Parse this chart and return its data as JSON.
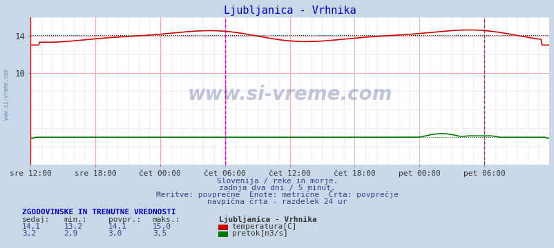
{
  "title": "Ljubljanica - Vrhnika",
  "title_color": "#0000cc",
  "bg_color": "#c8d8e8",
  "plot_bg_color": "#ffffff",
  "grid_color_major": "#ffaaaa",
  "grid_color_minor": "#ddddff",
  "x_tick_labels": [
    "sre 12:00",
    "sre 18:00",
    "čet 00:00",
    "čet 06:00",
    "čet 12:00",
    "čet 18:00",
    "pet 00:00",
    "pet 06:00"
  ],
  "ylim": [
    0,
    16
  ],
  "avg_temp": 14.1,
  "avg_flow": 3.0,
  "temp_color": "#cc0000",
  "flow_color": "#007700",
  "vline_color": "#cc00cc",
  "vline_positions": [
    0.5,
    1.5
  ],
  "watermark_text": "www.si-vreme.com",
  "watermark_color": "#334488",
  "watermark_alpha": 0.3,
  "footer_line1": "Slovenija / reke in morje.",
  "footer_line2": "zadnja dva dni / 5 minut.",
  "footer_line3": "Meritve: povprečne  Enote: metrične  Črta: povprečje",
  "footer_line4": "navpična črta - razdelek 24 ur",
  "footer_color": "#334488",
  "stats_title": "ZGODOVINSKE IN TRENUTNE VREDNOSTI",
  "stats_color": "#0000cc",
  "stats_headers": [
    "sedaj:",
    "min.:",
    "povpr.:",
    "maks.:"
  ],
  "stats_temp": [
    "14,1",
    "13,2",
    "14,1",
    "15,0"
  ],
  "stats_flow": [
    "3,2",
    "2,9",
    "3,0",
    "3,5"
  ],
  "legend_station": "Ljubljanica - Vrhnika",
  "legend_temp_label": "temperatura[C]",
  "legend_flow_label": "pretok[m3/s]",
  "left_label": "www.si-vreme.com",
  "left_label_color": "#6688aa"
}
